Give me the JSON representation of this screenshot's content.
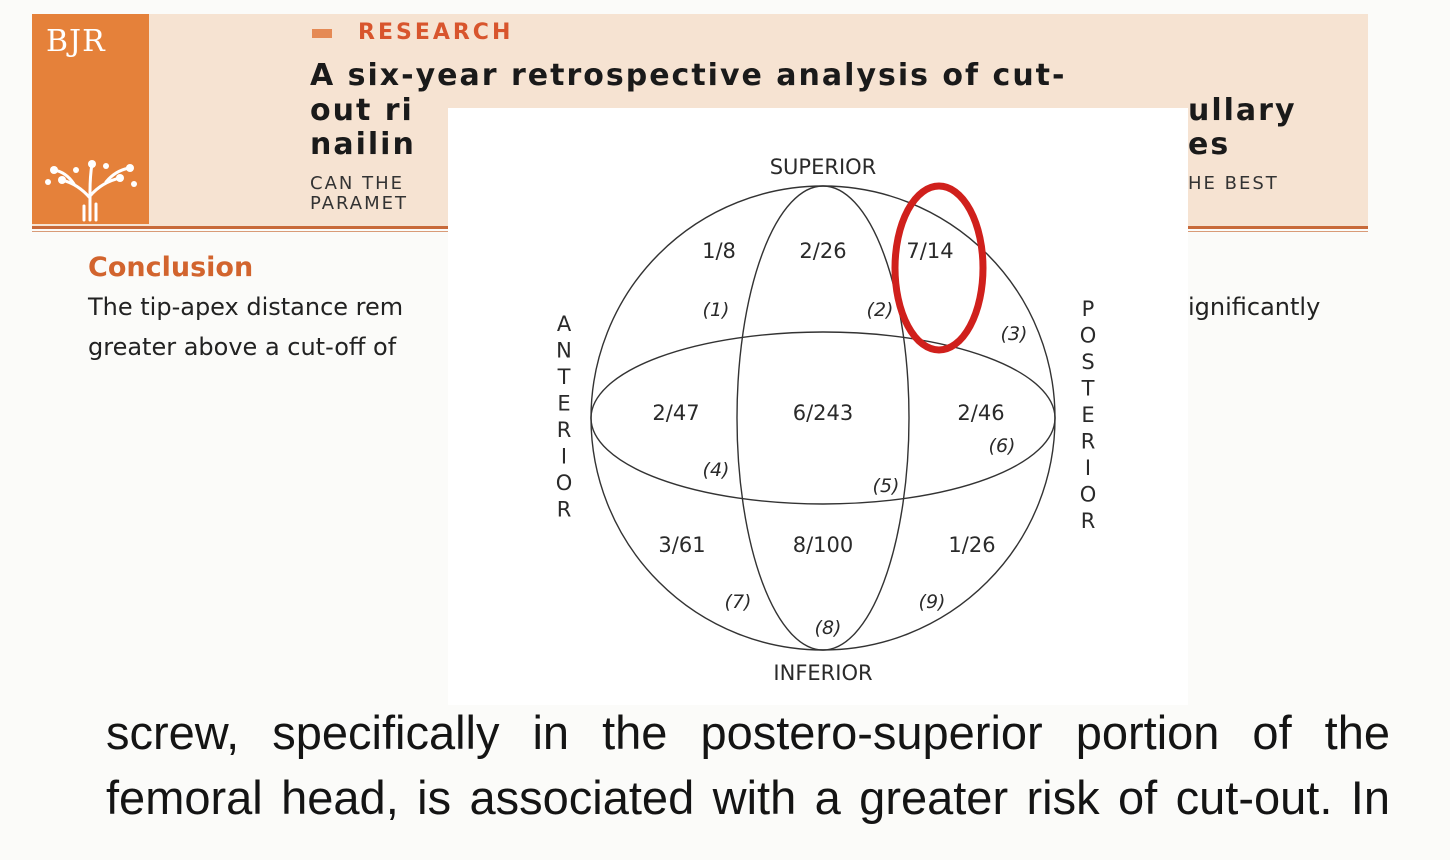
{
  "header": {
    "journal_logo": "BJR",
    "section_label": "RESEARCH",
    "title_line_1": "A six-year retrospective analysis of cut-",
    "title_line_2": "out ri",
    "title_line_2_tail": "ullary",
    "title_line_3": "nailin",
    "title_line_3_tail": "es",
    "subtitle_line_1": "CAN THE",
    "subtitle_line_1_tail": "HE BEST",
    "subtitle_line_2": "PARAMET"
  },
  "conclusion": {
    "heading": "Conclusion",
    "line_1": "The tip-apex distance rem",
    "line_1_tail": "ignificantly",
    "line_2": "greater above a cut-off of"
  },
  "figure": {
    "labels": {
      "superior": "SUPERIOR",
      "inferior": "INFERIOR",
      "anterior": "ANTERIOR",
      "posterior": "POSTERIOR"
    },
    "zones": [
      {
        "zone": "(1)",
        "ratio": "1/8"
      },
      {
        "zone": "(2)",
        "ratio": "2/26"
      },
      {
        "zone": "(3)",
        "ratio": "7/14"
      },
      {
        "zone": "(4)",
        "ratio": "2/47"
      },
      {
        "zone": "(5)",
        "ratio": "6/243"
      },
      {
        "zone": "(6)",
        "ratio": "2/46"
      },
      {
        "zone": "(7)",
        "ratio": "3/61"
      },
      {
        "zone": "(8)",
        "ratio": "8/100"
      },
      {
        "zone": "(9)",
        "ratio": "1/26"
      }
    ],
    "highlighted_zone": "(3)",
    "highlight_color": "#d0201c"
  },
  "body_text": {
    "line_1": "screw, specifically in the postero-superior portion of the",
    "line_2": "femoral head, is associated with a greater risk of cut-out. In"
  },
  "colors": {
    "logo_bg": "#e5813a",
    "header_bg": "#f6e3d2",
    "accent": "#d2642e"
  }
}
